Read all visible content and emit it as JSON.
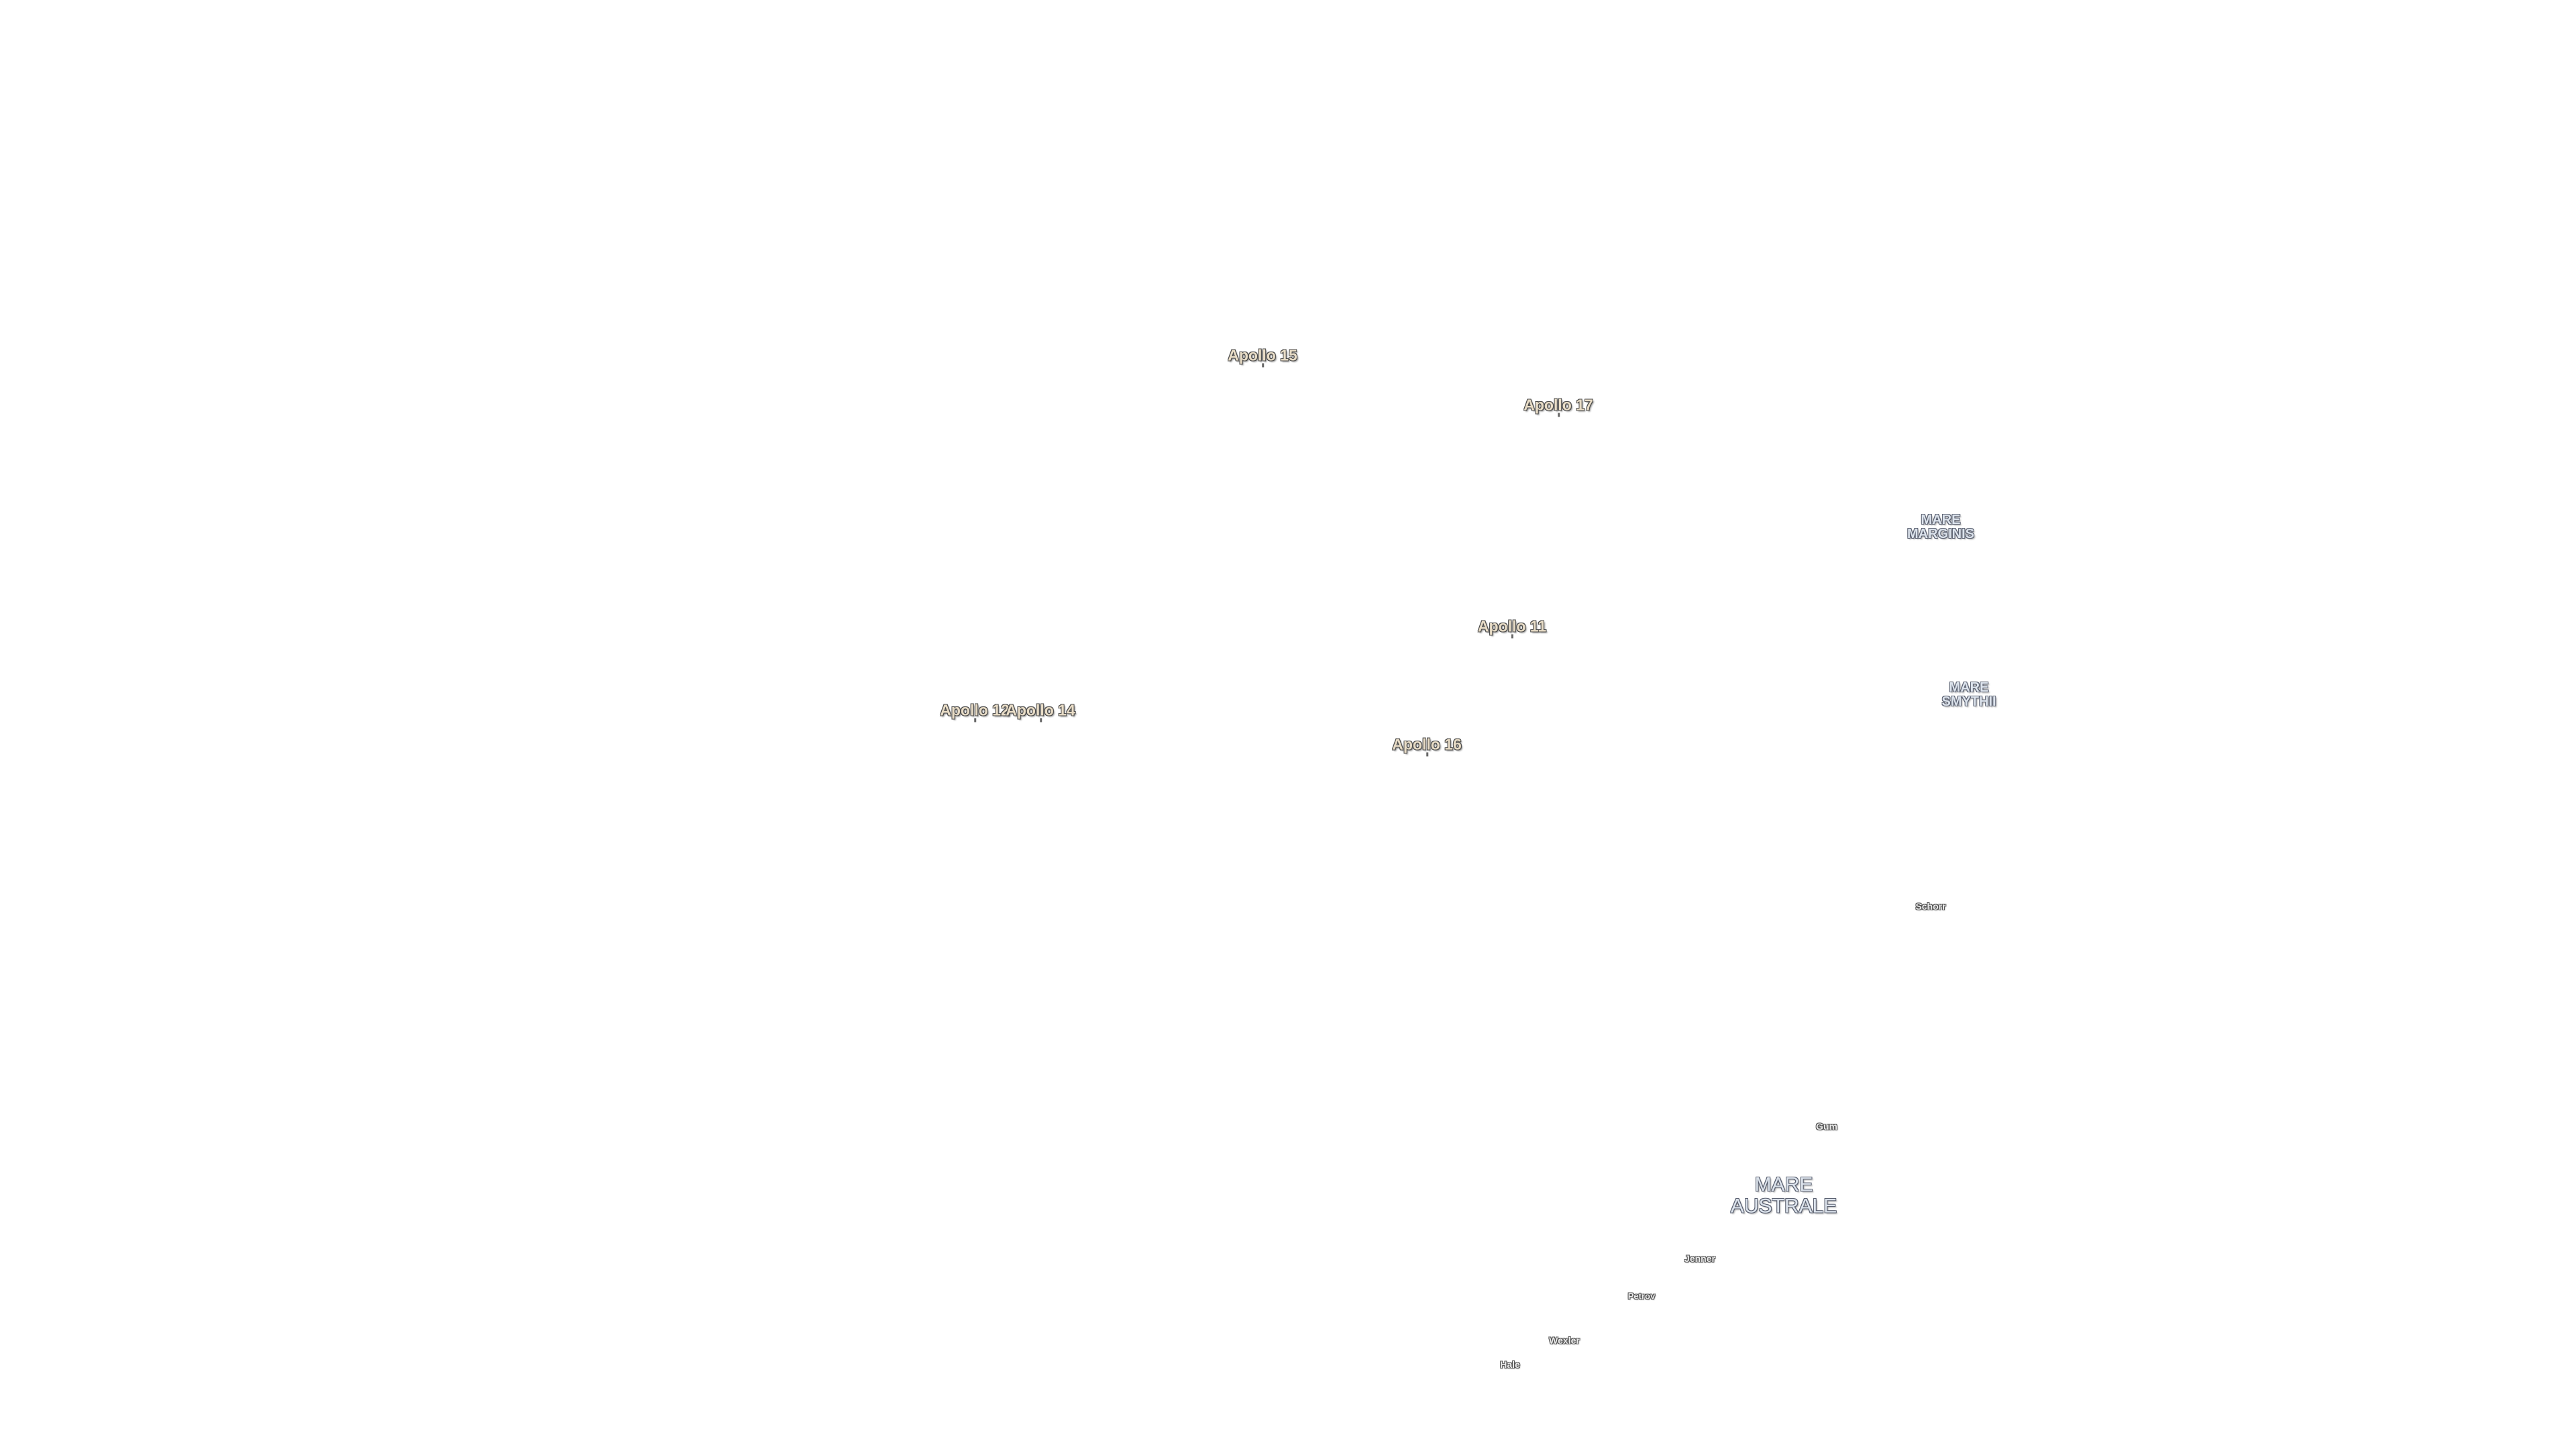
{
  "map": {
    "apollo_sites": [
      {
        "id": "apollo-15",
        "label": "Apollo 15"
      },
      {
        "id": "apollo-17",
        "label": "Apollo 17"
      },
      {
        "id": "apollo-11",
        "label": "Apollo 11"
      },
      {
        "id": "apollo-12",
        "label": "Apollo 12"
      },
      {
        "id": "apollo-14",
        "label": "Apollo 14"
      },
      {
        "id": "apollo-16",
        "label": "Apollo 16"
      }
    ],
    "maria": [
      {
        "id": "mare-marginis",
        "line1": "MARE",
        "line2": "MARGINIS"
      },
      {
        "id": "mare-smythii",
        "line1": "MARE",
        "line2": "SMYTHII"
      },
      {
        "id": "mare-australe",
        "line1": "MARE",
        "line2": "AUSTRALE"
      }
    ],
    "craters": [
      {
        "id": "schorr",
        "label": "Schorr"
      },
      {
        "id": "gum",
        "label": "Gum"
      },
      {
        "id": "jenner",
        "label": "Jenner"
      },
      {
        "id": "petrov",
        "label": "Petrov"
      },
      {
        "id": "wexler",
        "label": "Wexler"
      },
      {
        "id": "hale",
        "label": "Hale"
      }
    ],
    "colors": {
      "background": "#ffffff",
      "apollo_label": "#e8dcc6",
      "mare_label": "#dce3ec",
      "crater_label": "#ececec"
    }
  }
}
